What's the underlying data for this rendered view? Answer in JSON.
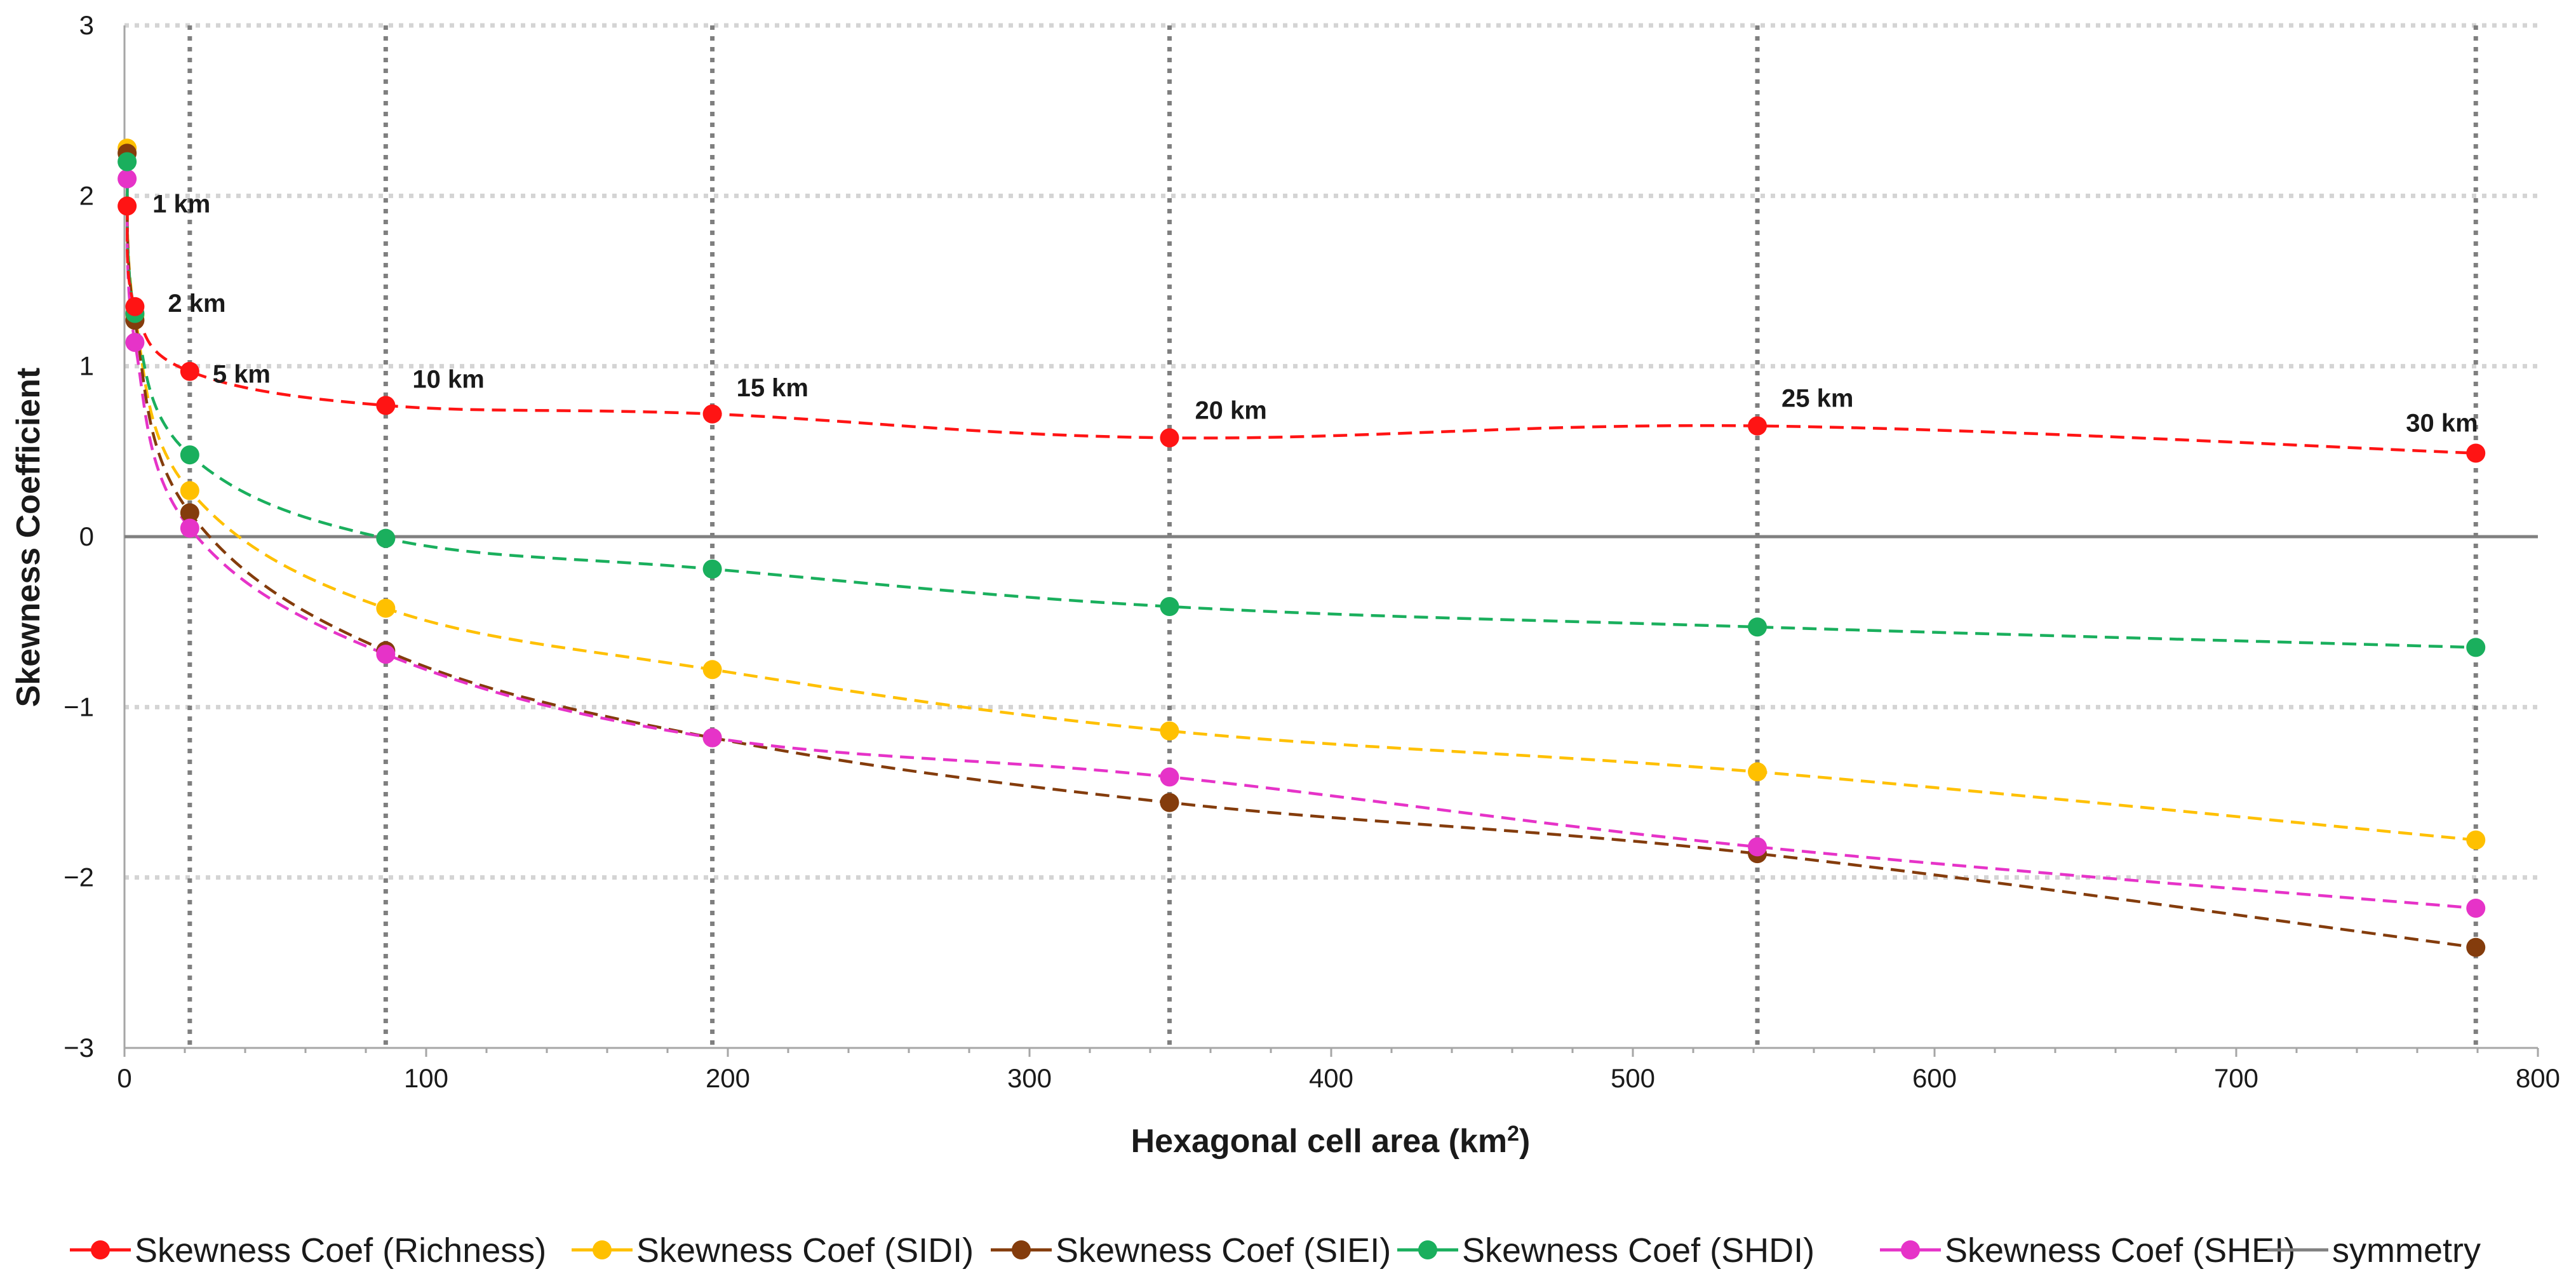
{
  "chart_data": {
    "type": "line",
    "title": "",
    "xlabel": "Hexagonal cell area (km",
    "xlabel_sup": "2",
    "xlabel_end": ")",
    "ylabel": "Skewness Coefficient",
    "xlim": [
      0,
      800
    ],
    "ylim": [
      -3,
      3
    ],
    "xticks": [
      0,
      100,
      200,
      300,
      400,
      500,
      600,
      700,
      800
    ],
    "yticks": [
      -3,
      -2,
      -1,
      0,
      1,
      2,
      3
    ],
    "ytick_labels": [
      "−3",
      "−2",
      "−1",
      "0",
      "1",
      "2",
      "3"
    ],
    "x": [
      0.87,
      3.46,
      21.65,
      86.6,
      194.86,
      346.41,
      541.27,
      779.42
    ],
    "vertical_reference_lines": [
      21.65,
      86.6,
      194.86,
      346.41,
      541.27,
      779.42
    ],
    "annotations": [
      {
        "label": "1 km",
        "x": 0.87,
        "y": 1.94
      },
      {
        "label": "2 km",
        "x": 3.46,
        "y": 1.35
      },
      {
        "label": "5 km",
        "x": 21.65,
        "y": 0.97
      },
      {
        "label": "10 km",
        "x": 86.6,
        "y": 0.77
      },
      {
        "label": "15 km",
        "x": 194.86,
        "y": 0.72
      },
      {
        "label": "20 km",
        "x": 346.41,
        "y": 0.58
      },
      {
        "label": "25 km",
        "x": 541.27,
        "y": 0.65
      },
      {
        "label": "30 km",
        "x": 779.42,
        "y": 0.49
      }
    ],
    "series": [
      {
        "name": "Skewness Coef (SIDI)",
        "color": "#ffc000",
        "values": [
          2.28,
          1.3,
          0.27,
          -0.42,
          -0.78,
          -1.14,
          -1.38,
          -1.78
        ]
      },
      {
        "name": "Skewness Coef (SIEI)",
        "color": "#843c0c",
        "values": [
          2.25,
          1.27,
          0.14,
          -0.67,
          -1.18,
          -1.56,
          -1.86,
          -2.41
        ]
      },
      {
        "name": "Skewness Coef (SHEI)",
        "color": "#e633c8",
        "values": [
          2.1,
          1.14,
          0.05,
          -0.69,
          -1.18,
          -1.41,
          -1.82,
          -2.18
        ]
      },
      {
        "name": "Skewness Coef (SHDI)",
        "color": "#1aaf5d",
        "values": [
          2.2,
          1.31,
          0.48,
          -0.01,
          -0.19,
          -0.41,
          -0.53,
          -0.65
        ]
      },
      {
        "name": "Skewness Coef (Richness)",
        "color": "#ff1414",
        "values": [
          1.94,
          1.35,
          0.97,
          0.77,
          0.72,
          0.58,
          0.65,
          0.49
        ]
      }
    ],
    "reference_line": {
      "name": "symmetry",
      "y": 0,
      "color": "#808080"
    },
    "legend": {
      "position": "bottom",
      "items": [
        {
          "label": "Skewness Coef (Richness)",
          "color": "#ff1414",
          "marker": true
        },
        {
          "label": "Skewness Coef (SIDI)",
          "color": "#ffc000",
          "marker": true
        },
        {
          "label": "Skewness Coef (SIEI)",
          "color": "#843c0c",
          "marker": true
        },
        {
          "label": "Skewness Coef (SHDI)",
          "color": "#1aaf5d",
          "marker": true
        },
        {
          "label": "Skewness Coef (SHEI)",
          "color": "#e633c8",
          "marker": true
        },
        {
          "label": "symmetry",
          "color": "#808080",
          "marker": false
        }
      ]
    }
  }
}
